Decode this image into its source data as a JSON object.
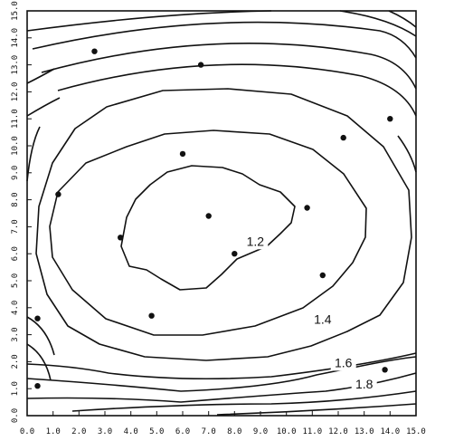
{
  "chart_data": {
    "type": "scatter",
    "title": "",
    "xlabel": "",
    "ylabel": "",
    "xlim": [
      0,
      15
    ],
    "ylim": [
      0,
      15
    ],
    "grid": false,
    "x_ticks": [
      "0.0",
      "1.0",
      "2.0",
      "3.0",
      "4.0",
      "5.0",
      "6.0",
      "7.0",
      "8.0",
      "9.0",
      "10.0",
      "11.0",
      "12.0",
      "13.0",
      "14.0",
      "15.0"
    ],
    "y_ticks": [
      "0.0",
      "1.0",
      "2.0",
      "3.0",
      "4.0",
      "5.0",
      "6.0",
      "7.0",
      "8.0",
      "9.0",
      "10.0",
      "11.0",
      "12.0",
      "13.0",
      "14.0",
      "15.0"
    ],
    "points": [
      {
        "x": 2.6,
        "y": 13.5
      },
      {
        "x": 6.7,
        "y": 13.0
      },
      {
        "x": 14.0,
        "y": 11.0
      },
      {
        "x": 12.2,
        "y": 10.3
      },
      {
        "x": 6.0,
        "y": 9.7
      },
      {
        "x": 1.2,
        "y": 8.2
      },
      {
        "x": 10.8,
        "y": 7.7
      },
      {
        "x": 7.0,
        "y": 7.4
      },
      {
        "x": 3.6,
        "y": 6.6
      },
      {
        "x": 8.0,
        "y": 6.0
      },
      {
        "x": 11.4,
        "y": 5.2
      },
      {
        "x": 4.8,
        "y": 3.7
      },
      {
        "x": 0.4,
        "y": 3.6
      },
      {
        "x": 13.8,
        "y": 1.7
      },
      {
        "x": 0.4,
        "y": 1.1
      }
    ],
    "contour_labels": [
      {
        "text": "1.2",
        "x": 8.8,
        "y": 6.3
      },
      {
        "text": "1.4",
        "x": 11.4,
        "y": 3.4
      },
      {
        "text": "1.6",
        "x": 12.2,
        "y": 1.8
      },
      {
        "text": "1.8",
        "x": 13.0,
        "y": 1.0
      }
    ]
  }
}
